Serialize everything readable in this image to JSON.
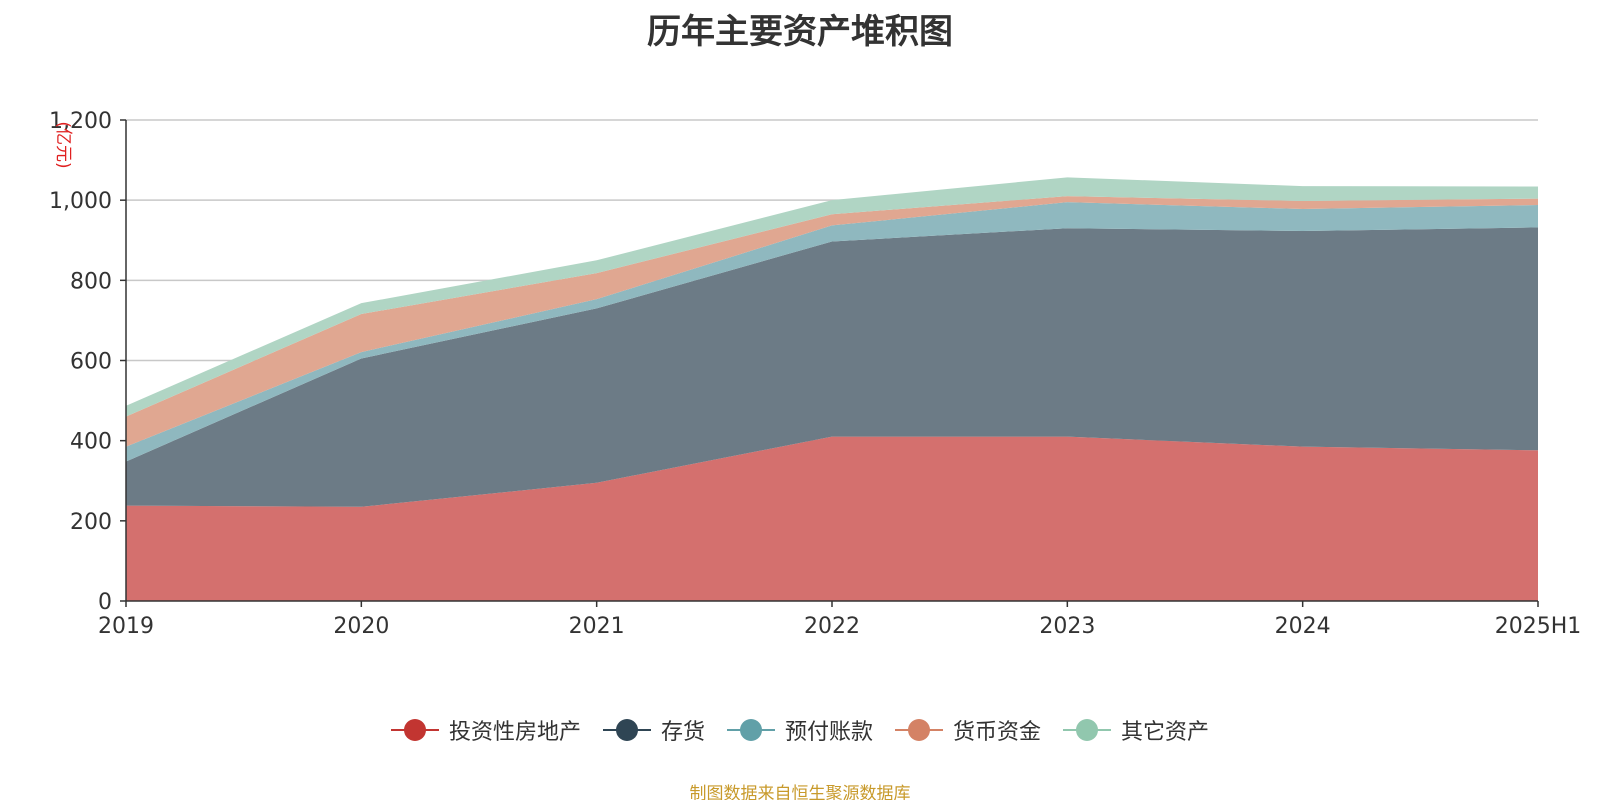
{
  "chart_data": {
    "type": "area",
    "stacked": true,
    "title": "历年主要资产堆积图",
    "ylabel": "(亿元)",
    "categories": [
      "2019",
      "2020",
      "2021",
      "2022",
      "2023",
      "2024",
      "2025H1"
    ],
    "ylim": [
      0,
      1200
    ],
    "yticks": [
      0,
      200,
      400,
      600,
      800,
      1000,
      1200
    ],
    "ytick_labels": [
      "0",
      "200",
      "400",
      "600",
      "800",
      "1,000",
      "1,200"
    ],
    "grid": true,
    "legend_position": "bottom",
    "series": [
      {
        "name": "投资性房地产",
        "values": [
          238,
          235,
          295,
          410,
          410,
          385,
          376
        ],
        "color": "#c23531",
        "fill": "#d4706e"
      },
      {
        "name": "存货",
        "values": [
          110,
          370,
          435,
          487,
          520,
          538,
          556
        ],
        "color": "#2f4554",
        "fill": "#6c7b86"
      },
      {
        "name": "预付账款",
        "values": [
          37,
          16,
          23,
          40,
          65,
          55,
          56
        ],
        "color": "#61a0a8",
        "fill": "#8fb8bf"
      },
      {
        "name": "货币资金",
        "values": [
          75,
          95,
          65,
          28,
          15,
          20,
          16
        ],
        "color": "#d48265",
        "fill": "#e0a791"
      },
      {
        "name": "其它资产",
        "values": [
          27,
          27,
          32,
          35,
          47,
          37,
          30
        ],
        "color": "#91c7ae",
        "fill": "#b0d5c4"
      }
    ]
  },
  "source_note": "制图数据来自恒生聚源数据库"
}
